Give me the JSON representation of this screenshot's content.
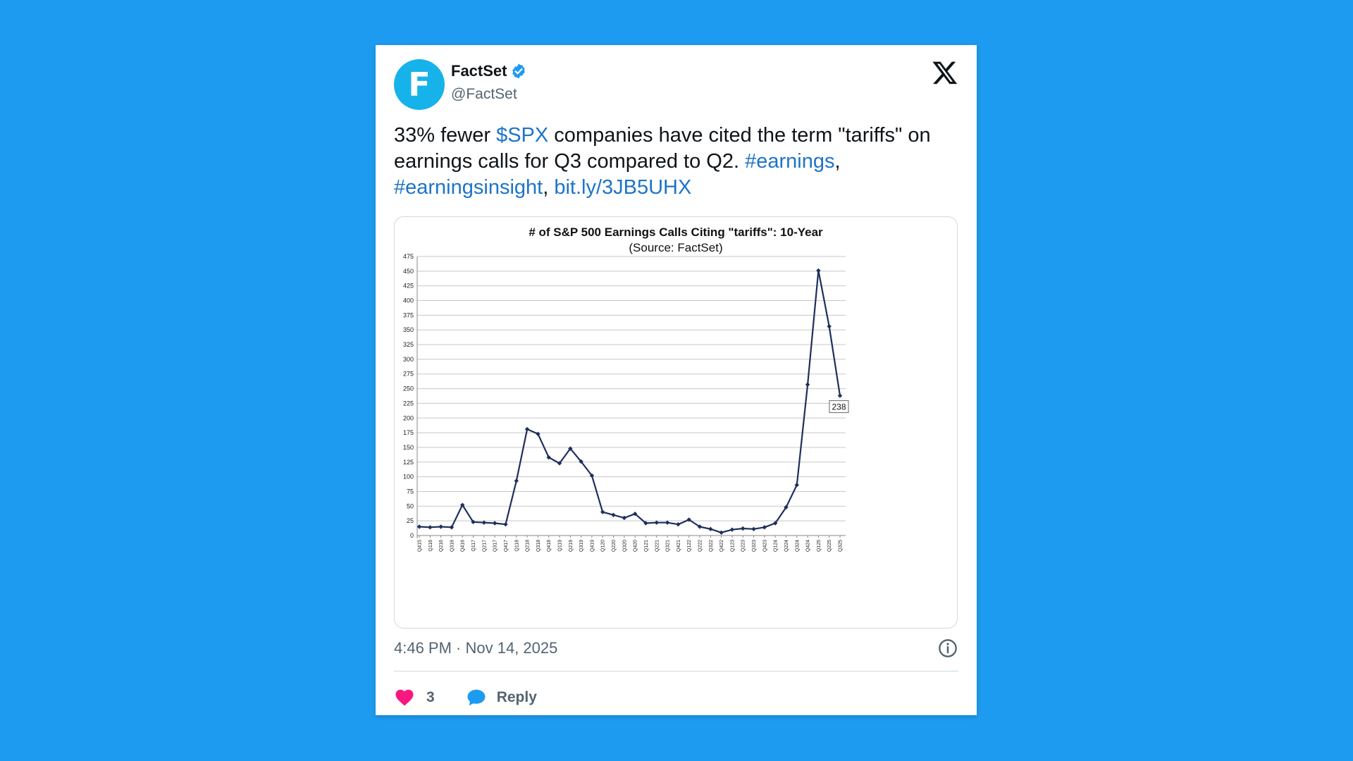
{
  "tweet": {
    "author_name": "FactSet",
    "avatar_letter": "F",
    "handle": "@FactSet",
    "text_parts": [
      {
        "t": "33% fewer ",
        "link": false
      },
      {
        "t": "$SPX",
        "link": true
      },
      {
        "t": " companies have cited the term \"tariffs\" on earnings calls for Q3 compared to Q2. ",
        "link": false
      },
      {
        "t": "#earnings",
        "link": true
      },
      {
        "t": ", ",
        "link": false
      },
      {
        "t": "#earningsinsight",
        "link": true
      },
      {
        "t": ", ",
        "link": false
      },
      {
        "t": "bit.ly/3JB5UHX",
        "link": true
      }
    ],
    "timestamp": "4:46 PM · Nov 14, 2025",
    "like_count": "3",
    "reply_label": "Reply"
  },
  "colors": {
    "background": "#1d9bf0",
    "link": "#1d74c9",
    "line": "#1f2f5c",
    "heart": "#f91880",
    "avatar": "#16b3ea"
  },
  "chart_data": {
    "type": "line",
    "title": "# of S&P 500 Earnings Calls Citing \"tariffs\": 10-Year",
    "subtitle": "(Source: FactSet)",
    "xlabel": "",
    "ylabel": "",
    "ylim": [
      0,
      475
    ],
    "yticks": [
      0,
      25,
      50,
      75,
      100,
      125,
      150,
      175,
      200,
      225,
      250,
      275,
      300,
      325,
      350,
      375,
      400,
      425,
      450,
      475
    ],
    "grid": true,
    "categories": [
      "Q415",
      "Q116",
      "Q216",
      "Q316",
      "Q416",
      "Q117",
      "Q217",
      "Q317",
      "Q417",
      "Q118",
      "Q218",
      "Q318",
      "Q418",
      "Q119",
      "Q219",
      "Q319",
      "Q419",
      "Q120",
      "Q220",
      "Q320",
      "Q420",
      "Q121",
      "Q221",
      "Q321",
      "Q421",
      "Q122",
      "Q222",
      "Q322",
      "Q422",
      "Q123",
      "Q223",
      "Q323",
      "Q423",
      "Q124",
      "Q224",
      "Q324",
      "Q424",
      "Q125",
      "Q225",
      "Q325"
    ],
    "series": [
      {
        "values": [
          15,
          14,
          15,
          14,
          52,
          23,
          22,
          21,
          19,
          93,
          181,
          173,
          133,
          123,
          148,
          126,
          102,
          40,
          35,
          30,
          37,
          21,
          22,
          22,
          19,
          27,
          15,
          11,
          5,
          10,
          12,
          11,
          14,
          21,
          48,
          86,
          257,
          451,
          356,
          238
        ]
      }
    ],
    "annotation": "238"
  }
}
